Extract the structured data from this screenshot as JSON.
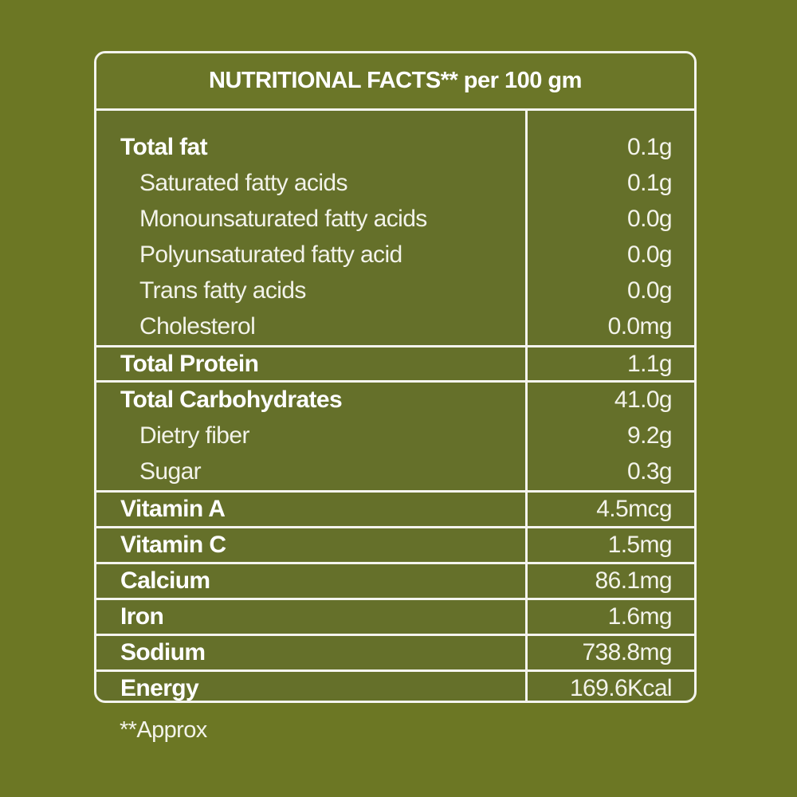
{
  "header": {
    "title_bold": "NUTRITIONAL FACTS**",
    "title_rest": " per 100 gm"
  },
  "rows": [
    {
      "label": "Total fat",
      "value": "0.1g",
      "level": "main"
    },
    {
      "label": "Saturated fatty acids",
      "value": "0.1g",
      "level": "sub"
    },
    {
      "label": "Monounsaturated fatty acids",
      "value": "0.0g",
      "level": "sub"
    },
    {
      "label": "Polyunsaturated fatty acid",
      "value": "0.0g",
      "level": "sub"
    },
    {
      "label": "Trans fatty acids",
      "value": "0.0g",
      "level": "sub"
    },
    {
      "label": "Cholesterol",
      "value": "0.0mg",
      "level": "sub"
    },
    {
      "label": "Total Protein",
      "value": "1.1g",
      "level": "main"
    },
    {
      "label": "Total Carbohydrates",
      "value": "41.0g",
      "level": "main"
    },
    {
      "label": "Dietry fiber",
      "value": "9.2g",
      "level": "sub"
    },
    {
      "label": "Sugar",
      "value": "0.3g",
      "level": "sub"
    },
    {
      "label": "Vitamin A",
      "value": "4.5mcg",
      "level": "main"
    },
    {
      "label": "Vitamin C",
      "value": "1.5mg",
      "level": "main"
    },
    {
      "label": "Calcium",
      "value": "86.1mg",
      "level": "main"
    },
    {
      "label": "Iron",
      "value": "1.6mg",
      "level": "main"
    },
    {
      "label": "Sodium",
      "value": "738.8mg",
      "level": "main"
    },
    {
      "label": "Energy",
      "value": "169.6Kcal",
      "level": "main"
    }
  ],
  "footnote": "**Approx",
  "colors": {
    "background": "#6c7724",
    "panel": "#65702a",
    "border": "#f4f4ee",
    "text": "#ffffff"
  }
}
